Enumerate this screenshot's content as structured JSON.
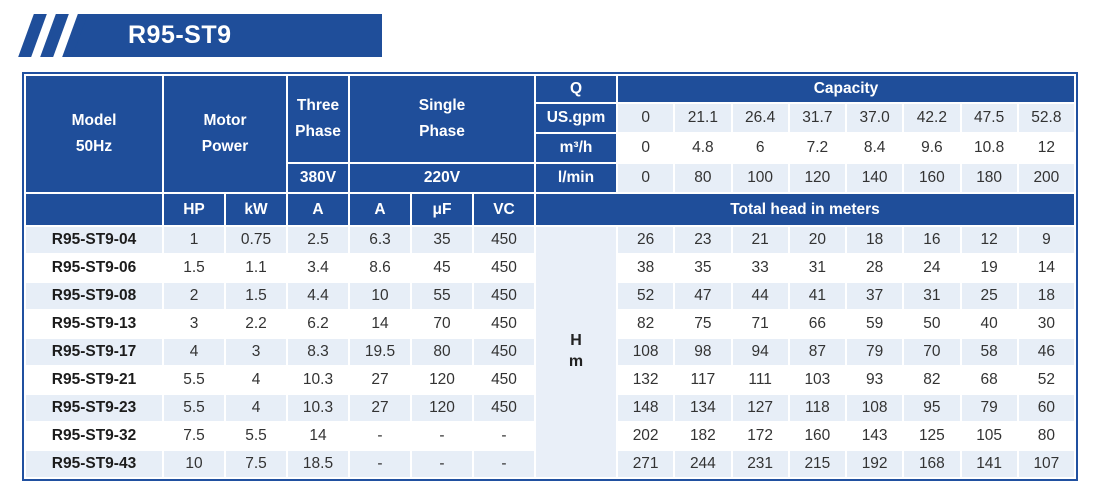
{
  "badge": {
    "title": "R95-ST9"
  },
  "colors": {
    "primary_blue": "#1f4e9a",
    "row_stripe": "#e7eef7",
    "border_blue": "#2050a0"
  },
  "table": {
    "header": {
      "model": [
        "Model",
        "50Hz"
      ],
      "motor": [
        "Motor",
        "Power"
      ],
      "three_phase": [
        "Three",
        "Phase"
      ],
      "single_phase": [
        "Single",
        "Phase"
      ],
      "v380": "380V",
      "v220": "220V",
      "q": "Q",
      "capacity": "Capacity",
      "flow_units": {
        "us_gpm": "US.gpm",
        "m3h": "m³/h",
        "lmin": "l/min"
      },
      "hp": "HP",
      "kw": "kW",
      "amp_380": "A",
      "amp_220": "A",
      "uf": "μF",
      "vc": "VC",
      "total_head": "Total head in meters",
      "head_unit": [
        "H",
        "m"
      ]
    },
    "capacity_rows": {
      "us_gpm": [
        "0",
        "21.1",
        "26.4",
        "31.7",
        "37.0",
        "42.2",
        "47.5",
        "52.8"
      ],
      "m3h": [
        "0",
        "4.8",
        "6",
        "7.2",
        "8.4",
        "9.6",
        "10.8",
        "12"
      ],
      "lmin": [
        "0",
        "80",
        "100",
        "120",
        "140",
        "160",
        "180",
        "200"
      ]
    },
    "rows": [
      {
        "model": "R95-ST9-04",
        "specs": [
          "1",
          "0.75",
          "2.5",
          "6.3",
          "35",
          "450"
        ],
        "heads": [
          "26",
          "23",
          "21",
          "20",
          "18",
          "16",
          "12",
          "9"
        ]
      },
      {
        "model": "R95-ST9-06",
        "specs": [
          "1.5",
          "1.1",
          "3.4",
          "8.6",
          "45",
          "450"
        ],
        "heads": [
          "38",
          "35",
          "33",
          "31",
          "28",
          "24",
          "19",
          "14"
        ]
      },
      {
        "model": "R95-ST9-08",
        "specs": [
          "2",
          "1.5",
          "4.4",
          "10",
          "55",
          "450"
        ],
        "heads": [
          "52",
          "47",
          "44",
          "41",
          "37",
          "31",
          "25",
          "18"
        ]
      },
      {
        "model": "R95-ST9-13",
        "specs": [
          "3",
          "2.2",
          "6.2",
          "14",
          "70",
          "450"
        ],
        "heads": [
          "82",
          "75",
          "71",
          "66",
          "59",
          "50",
          "40",
          "30"
        ]
      },
      {
        "model": "R95-ST9-17",
        "specs": [
          "4",
          "3",
          "8.3",
          "19.5",
          "80",
          "450"
        ],
        "heads": [
          "108",
          "98",
          "94",
          "87",
          "79",
          "70",
          "58",
          "46"
        ]
      },
      {
        "model": "R95-ST9-21",
        "specs": [
          "5.5",
          "4",
          "10.3",
          "27",
          "120",
          "450"
        ],
        "heads": [
          "132",
          "117",
          "111",
          "103",
          "93",
          "82",
          "68",
          "52"
        ]
      },
      {
        "model": "R95-ST9-23",
        "specs": [
          "5.5",
          "4",
          "10.3",
          "27",
          "120",
          "450"
        ],
        "heads": [
          "148",
          "134",
          "127",
          "118",
          "108",
          "95",
          "79",
          "60"
        ]
      },
      {
        "model": "R95-ST9-32",
        "specs": [
          "7.5",
          "5.5",
          "14",
          "-",
          "-",
          "-"
        ],
        "heads": [
          "202",
          "182",
          "172",
          "160",
          "143",
          "125",
          "105",
          "80"
        ]
      },
      {
        "model": "R95-ST9-43",
        "specs": [
          "10",
          "7.5",
          "18.5",
          "-",
          "-",
          "-"
        ],
        "heads": [
          "271",
          "244",
          "231",
          "215",
          "192",
          "168",
          "141",
          "107"
        ]
      }
    ]
  }
}
